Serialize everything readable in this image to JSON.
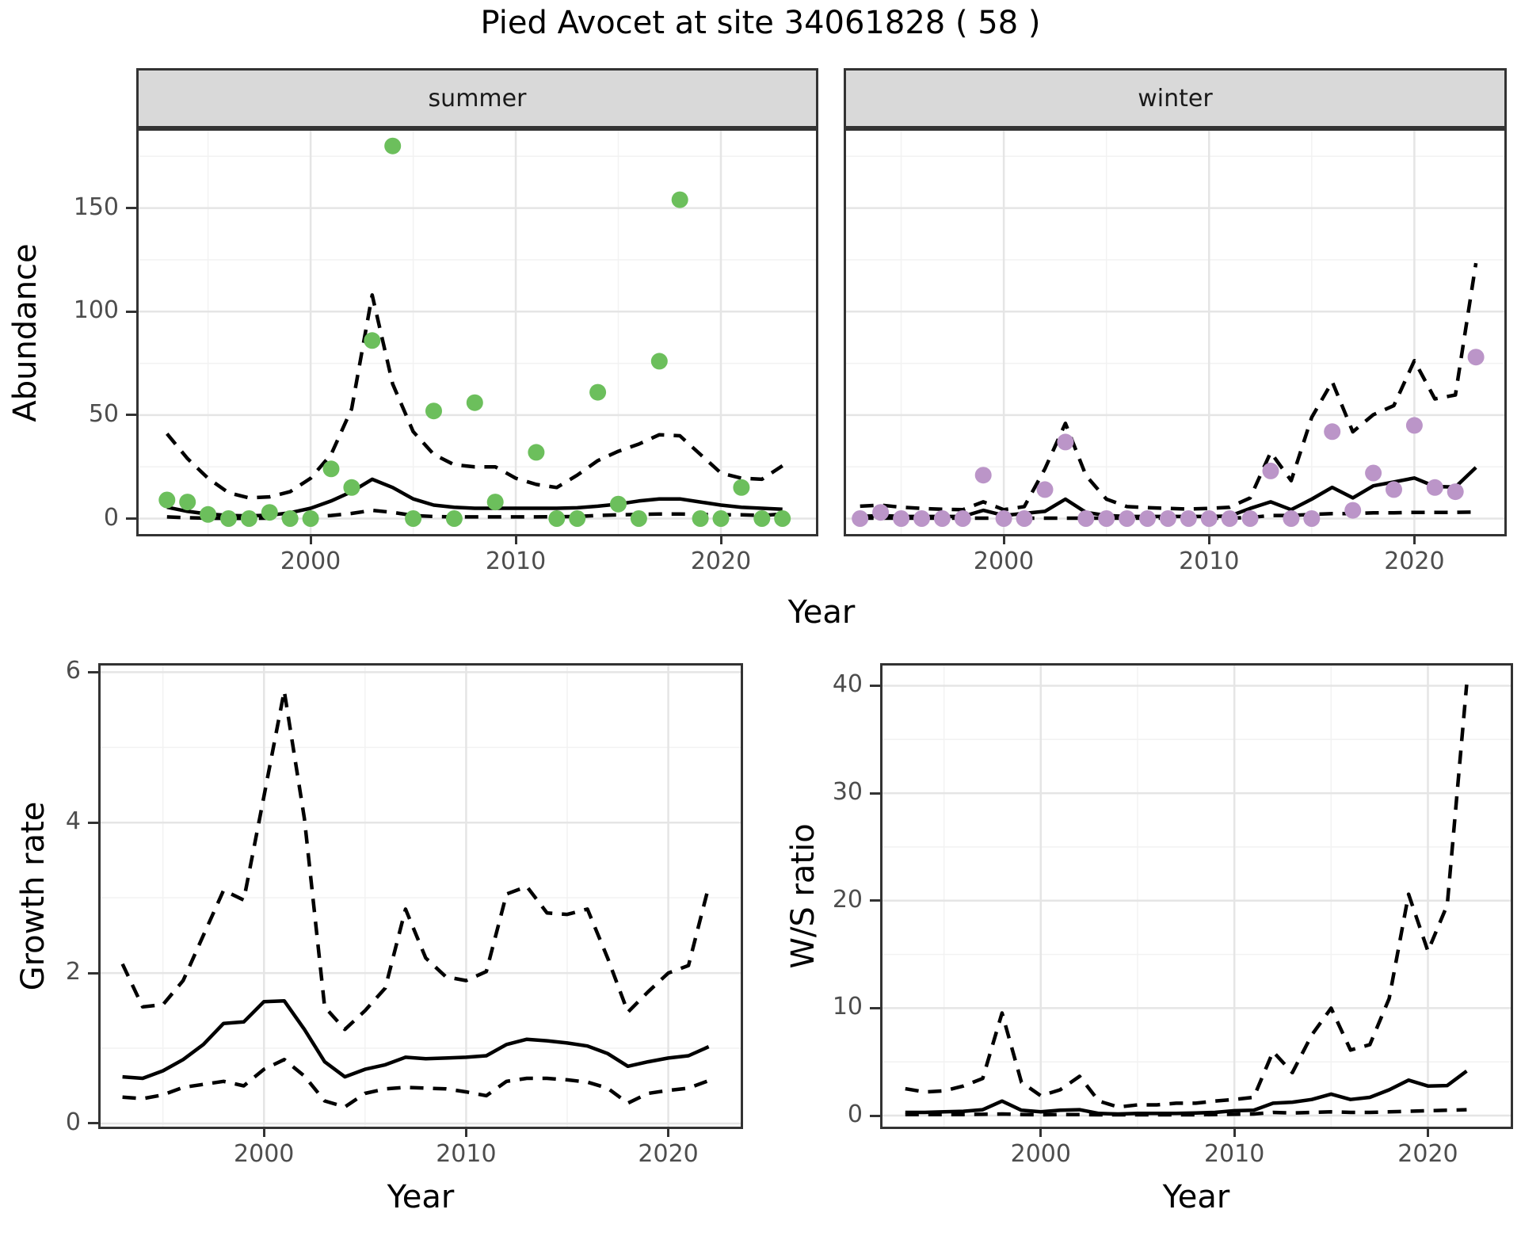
{
  "title": "Pied Avocet at site 34061828 ( 58 )",
  "colors": {
    "summer_points": "#6cbf5c",
    "winter_points": "#bb95c8",
    "fit_line": "#000000",
    "ci_line": "#000000",
    "strip_bg": "#d9d9d9",
    "panel_border": "#333333",
    "grid_major": "#e5e5e5",
    "grid_minor": "#f2f2f2",
    "title_text": "#000000",
    "tick_text": "#4d4d4d"
  },
  "chart_data": [
    {
      "id": "abundance-summer",
      "type": "scatter",
      "facet_label": "summer",
      "xlabel": "Year",
      "ylabel": "Abundance",
      "xlim": [
        1991.5,
        2024.75
      ],
      "ylim": [
        -8.6,
        188.5
      ],
      "grid": true,
      "legend": "none",
      "x_ticks": {
        "major": [
          2000,
          2010,
          2020
        ],
        "minor": [
          1995,
          2005,
          2015
        ],
        "labels": [
          "2000",
          "2010",
          "2020"
        ]
      },
      "y_ticks": {
        "major": [
          0,
          50,
          100,
          150
        ],
        "minor": [
          25,
          75,
          125,
          175
        ],
        "labels": [
          "0",
          "50",
          "100",
          "150"
        ]
      },
      "years": [
        1993,
        1994,
        1995,
        1996,
        1997,
        1998,
        1999,
        2000,
        2001,
        2002,
        2003,
        2004,
        2005,
        2006,
        2007,
        2008,
        2009,
        2010,
        2011,
        2012,
        2013,
        2014,
        2015,
        2016,
        2017,
        2018,
        2019,
        2020,
        2021,
        2022,
        2023
      ],
      "series": [
        {
          "name": "observed-points",
          "style": "points",
          "color": "#6cbf5c",
          "x": [
            1993,
            1994,
            1995,
            1996,
            1997,
            1998,
            1999,
            2000,
            2001,
            2002,
            2003,
            2004,
            2005,
            2006,
            2007,
            2008,
            2009,
            2011,
            2012,
            2013,
            2014,
            2015,
            2016,
            2017,
            2018,
            2019,
            2020,
            2021,
            2022,
            2023
          ],
          "y": [
            9,
            8,
            2,
            0,
            0,
            3,
            0,
            0,
            24,
            15,
            86,
            180,
            0,
            52,
            0,
            56,
            8,
            32,
            0,
            0,
            61,
            7,
            0,
            76,
            154,
            0,
            0,
            15,
            0,
            0
          ]
        },
        {
          "name": "model-fit",
          "style": "line-solid",
          "color": "#000000",
          "y": [
            5.5,
            3.5,
            2.2,
            1.5,
            1.3,
            1.6,
            2.8,
            5,
            8.5,
            13,
            19,
            15,
            9.5,
            6.5,
            5.5,
            5,
            5,
            5,
            5,
            5,
            5.2,
            6,
            7,
            8.5,
            9.5,
            9.5,
            8,
            6.5,
            5.5,
            5,
            4.5
          ]
        },
        {
          "name": "upper-ci",
          "style": "line-dashed",
          "color": "#000000",
          "y": [
            41,
            29,
            19.5,
            12.5,
            10,
            10.5,
            13,
            19.5,
            31,
            53,
            108,
            65,
            42,
            31,
            26,
            25,
            25,
            19.5,
            16.5,
            15,
            21,
            28,
            32.5,
            36,
            40.5,
            40,
            31,
            22,
            19.5,
            19,
            25.5
          ]
        },
        {
          "name": "lower-ci",
          "style": "line-dashed",
          "color": "#000000",
          "y": [
            0.8,
            0.4,
            0.2,
            0.1,
            0.1,
            0.2,
            0.4,
            0.8,
            1.5,
            2.5,
            4,
            3,
            1.5,
            1,
            0.8,
            0.8,
            0.8,
            0.8,
            0.8,
            0.9,
            1,
            1.5,
            1.8,
            2,
            2.2,
            2.2,
            2,
            1.8,
            1.8,
            1.5,
            2.2
          ]
        }
      ]
    },
    {
      "id": "abundance-winter",
      "type": "scatter",
      "facet_label": "winter",
      "xlabel": "Year",
      "ylabel": "Abundance",
      "xlim": [
        1992.2,
        2024.5
      ],
      "ylim": [
        -8.6,
        188.5
      ],
      "grid": true,
      "legend": "none",
      "x_ticks": {
        "major": [
          2000,
          2010,
          2020
        ],
        "minor": [
          1995,
          2005,
          2015
        ],
        "labels": [
          "2000",
          "2010",
          "2020"
        ]
      },
      "y_ticks": {
        "major": [
          0,
          50,
          100,
          150
        ],
        "minor": [
          25,
          75,
          125,
          175
        ],
        "labels": [
          "0",
          "50",
          "100",
          "150"
        ]
      },
      "years": [
        1993,
        1994,
        1995,
        1996,
        1997,
        1998,
        1999,
        2000,
        2001,
        2002,
        2003,
        2004,
        2005,
        2006,
        2007,
        2008,
        2009,
        2010,
        2011,
        2012,
        2013,
        2014,
        2015,
        2016,
        2017,
        2018,
        2019,
        2020,
        2021,
        2022,
        2023
      ],
      "series": [
        {
          "name": "observed-points",
          "style": "points",
          "color": "#bb95c8",
          "y": [
            0,
            3,
            0,
            0,
            0,
            0,
            21,
            0,
            0,
            14,
            37,
            0,
            0,
            0,
            0,
            0,
            0,
            0,
            0,
            0,
            23,
            0,
            0,
            42,
            4,
            22,
            14,
            45,
            15,
            13,
            78
          ]
        },
        {
          "name": "model-fit",
          "style": "line-solid",
          "color": "#000000",
          "y": [
            1,
            1.5,
            1,
            1,
            1,
            1,
            4,
            1.5,
            2.5,
            3.5,
            9.4,
            3,
            1.5,
            1,
            1,
            1,
            1,
            1,
            1.2,
            4.9,
            8.1,
            4.3,
            9.4,
            15.1,
            10,
            15.8,
            17.7,
            19.6,
            15.5,
            15.2,
            24.7
          ]
        },
        {
          "name": "upper-ci",
          "style": "line-dashed",
          "color": "#000000",
          "y": [
            6,
            6.5,
            5.5,
            4.9,
            4.5,
            4.3,
            8.1,
            4.3,
            5.8,
            24,
            46,
            20.8,
            9.4,
            5.8,
            5.3,
            4.9,
            4.6,
            4.9,
            5.5,
            10,
            32,
            18.3,
            48.9,
            66.1,
            41.9,
            50.2,
            54.6,
            76.3,
            57.8,
            59.7,
            123.4
          ]
        },
        {
          "name": "lower-ci",
          "style": "line-dashed",
          "color": "#000000",
          "y": [
            0.2,
            0.2,
            0.2,
            0.2,
            0.2,
            0.2,
            0.2,
            0.2,
            0.2,
            0.2,
            0.2,
            0.2,
            0.2,
            0.2,
            0.2,
            0.2,
            0.2,
            0.2,
            0.2,
            0.5,
            1.5,
            1.5,
            2,
            2.4,
            2.4,
            2.8,
            2.8,
            3,
            3,
            3,
            3.2
          ]
        }
      ]
    },
    {
      "id": "growth-rate",
      "type": "line",
      "facet_label": "",
      "xlabel": "Year",
      "ylabel": "Growth rate",
      "xlim": [
        1991.8,
        2023.7
      ],
      "ylim": [
        -0.074,
        6.12
      ],
      "grid": true,
      "legend": "none",
      "x_ticks": {
        "major": [
          2000,
          2010,
          2020
        ],
        "minor": [
          1995,
          2005,
          2015
        ],
        "labels": [
          "2000",
          "2010",
          "2020"
        ]
      },
      "y_ticks": {
        "major": [
          0,
          2,
          4,
          6
        ],
        "minor": [
          1,
          3,
          5
        ],
        "labels": [
          "0",
          "2",
          "4",
          "6"
        ]
      },
      "years": [
        1993,
        1994,
        1995,
        1996,
        1997,
        1998,
        1999,
        2000,
        2001,
        2002,
        2003,
        2004,
        2005,
        2006,
        2007,
        2008,
        2009,
        2010,
        2011,
        2012,
        2013,
        2014,
        2015,
        2016,
        2017,
        2018,
        2019,
        2020,
        2021,
        2022
      ],
      "series": [
        {
          "name": "growth-median",
          "style": "line-solid",
          "color": "#000000",
          "y": [
            0.62,
            0.6,
            0.7,
            0.85,
            1.05,
            1.33,
            1.35,
            1.62,
            1.63,
            1.25,
            0.82,
            0.62,
            0.72,
            0.78,
            0.88,
            0.86,
            0.87,
            0.88,
            0.9,
            1.05,
            1.12,
            1.1,
            1.07,
            1.03,
            0.93,
            0.76,
            0.82,
            0.87,
            0.9,
            1.02
          ]
        },
        {
          "name": "upper-ci",
          "style": "line-dashed",
          "color": "#000000",
          "y": [
            2.12,
            1.55,
            1.58,
            1.9,
            2.5,
            3.1,
            2.97,
            4.35,
            5.75,
            4.05,
            1.55,
            1.25,
            1.5,
            1.8,
            2.85,
            2.2,
            1.95,
            1.9,
            2.02,
            3.05,
            3.15,
            2.8,
            2.78,
            2.85,
            2.2,
            1.48,
            1.75,
            2.0,
            2.1,
            3.15
          ]
        },
        {
          "name": "lower-ci",
          "style": "line-dashed",
          "color": "#000000",
          "y": [
            0.35,
            0.33,
            0.38,
            0.48,
            0.52,
            0.56,
            0.5,
            0.72,
            0.85,
            0.63,
            0.3,
            0.22,
            0.4,
            0.46,
            0.48,
            0.47,
            0.46,
            0.42,
            0.37,
            0.56,
            0.6,
            0.6,
            0.58,
            0.55,
            0.47,
            0.27,
            0.4,
            0.44,
            0.47,
            0.57
          ]
        }
      ]
    },
    {
      "id": "ws-ratio",
      "type": "line",
      "facet_label": "",
      "xlabel": "Year",
      "ylabel": "W/S ratio",
      "xlim": [
        1991.7,
        2024.4
      ],
      "ylim": [
        -1.25,
        42.1
      ],
      "grid": true,
      "legend": "none",
      "x_ticks": {
        "major": [
          2000,
          2010,
          2020
        ],
        "minor": [
          1995,
          2005,
          2015
        ],
        "labels": [
          "2000",
          "2010",
          "2020"
        ]
      },
      "y_ticks": {
        "major": [
          0,
          10,
          20,
          30,
          40
        ],
        "minor": [
          5,
          15,
          25,
          35
        ],
        "labels": [
          "0",
          "10",
          "20",
          "30",
          "40"
        ]
      },
      "years": [
        1993,
        1994,
        1995,
        1996,
        1997,
        1998,
        1999,
        2000,
        2001,
        2002,
        2003,
        2004,
        2005,
        2006,
        2007,
        2008,
        2009,
        2010,
        2011,
        2012,
        2013,
        2014,
        2015,
        2016,
        2017,
        2018,
        2019,
        2020,
        2021,
        2022
      ],
      "series": [
        {
          "name": "ratio-median",
          "style": "line-solid",
          "color": "#000000",
          "y": [
            0.3,
            0.3,
            0.35,
            0.4,
            0.55,
            1.35,
            0.5,
            0.35,
            0.5,
            0.55,
            0.2,
            0.15,
            0.2,
            0.2,
            0.2,
            0.25,
            0.3,
            0.45,
            0.5,
            1.15,
            1.25,
            1.5,
            2.0,
            1.5,
            1.7,
            2.4,
            3.3,
            2.75,
            2.8,
            4.15
          ]
        },
        {
          "name": "upper-ci",
          "style": "line-dashed",
          "color": "#000000",
          "y": [
            2.5,
            2.2,
            2.3,
            2.75,
            3.45,
            9.55,
            3.1,
            1.85,
            2.4,
            3.65,
            1.35,
            0.8,
            1.0,
            1.0,
            1.15,
            1.15,
            1.35,
            1.5,
            1.7,
            5.95,
            4.0,
            7.5,
            10.0,
            6.1,
            6.6,
            10.9,
            20.6,
            15.3,
            19.6,
            40.1
          ]
        },
        {
          "name": "lower-ci",
          "style": "line-dashed",
          "color": "#000000",
          "y": [
            0.1,
            0.1,
            0.1,
            0.1,
            0.12,
            0.15,
            0.1,
            0.08,
            0.1,
            0.1,
            0.08,
            0.08,
            0.08,
            0.08,
            0.08,
            0.08,
            0.1,
            0.12,
            0.15,
            0.3,
            0.25,
            0.3,
            0.35,
            0.3,
            0.3,
            0.35,
            0.4,
            0.45,
            0.5,
            0.55
          ]
        }
      ]
    }
  ]
}
